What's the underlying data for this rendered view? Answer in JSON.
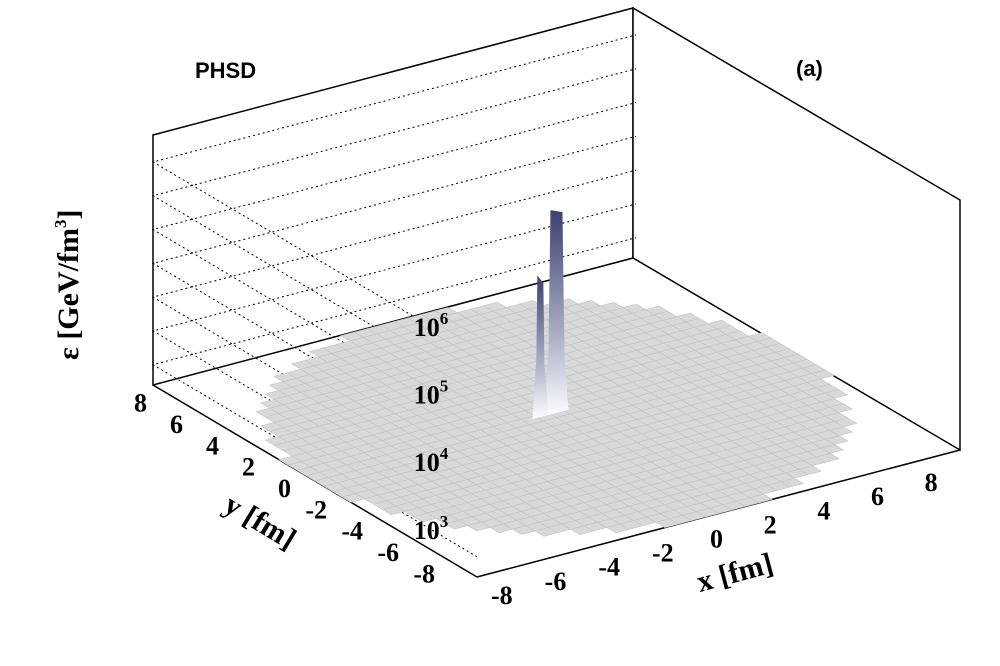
{
  "chart_data": {
    "type": "surface3d",
    "title": "PHSD",
    "panel_label": "(a)",
    "xlabel": "x [fm]",
    "ylabel": "y [fm]",
    "zlabel": "ε [GeV/fm³]",
    "zlabel_parts": {
      "main": "ε [GeV/fm",
      "sup": "3",
      "close": "]"
    },
    "x_ticks": [
      "-8",
      "-6",
      "-4",
      "-2",
      "0",
      "2",
      "4",
      "6",
      "8"
    ],
    "y_ticks": [
      "-8",
      "-6",
      "-4",
      "-2",
      "0",
      "2",
      "4",
      "6",
      "8"
    ],
    "z_ticks": [
      {
        "base": "10",
        "exp": "3"
      },
      {
        "base": "10",
        "exp": "4"
      },
      {
        "base": "10",
        "exp": "5"
      },
      {
        "base": "10",
        "exp": "6"
      }
    ],
    "x_range": [
      -9,
      9
    ],
    "y_range": [
      -9,
      9
    ],
    "z_scale": "log",
    "z_range": [
      200,
      1000000
    ],
    "plateau_radius_fm": 9,
    "peaks": [
      {
        "x": 0.2,
        "y": 0.3,
        "z": 200000
      },
      {
        "x": -0.4,
        "y": 0.3,
        "z": 25000
      }
    ],
    "colors": {
      "plateau": "#d9d9d9",
      "peak": "#3d3f6e",
      "grid": "#000000"
    }
  }
}
